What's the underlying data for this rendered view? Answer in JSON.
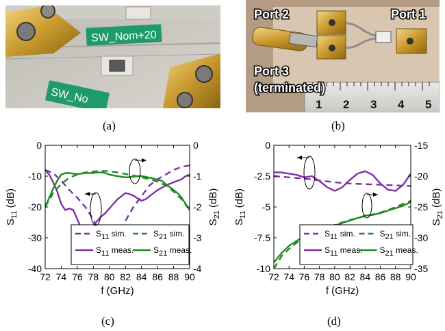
{
  "panel_a": {
    "caption": "(a)",
    "labels": [
      "SW_Nom+20",
      "SW_No"
    ]
  },
  "panel_b": {
    "caption": "(b)",
    "labels": [
      "Port 2",
      "Port 1",
      "Port 3",
      "(terminated)"
    ],
    "ruler_numbers": [
      "1",
      "2",
      "3",
      "4",
      "5"
    ]
  },
  "chart_data": [
    {
      "type": "line",
      "caption": "(c)",
      "xlabel": "f (GHz)",
      "ylabel_left": "S11 (dB)",
      "ylabel_right": "S21 (dB)",
      "xlim": [
        72,
        90
      ],
      "xticks": [
        "72",
        "74",
        "76",
        "78",
        "80",
        "82",
        "84",
        "86",
        "88",
        "90"
      ],
      "ylim_left": [
        -40,
        0
      ],
      "yticks_left": [
        "0",
        "-10",
        "-20",
        "-30",
        "-40"
      ],
      "ylim_right": [
        -4,
        0
      ],
      "yticks_right": [
        "0",
        "-1",
        "-2",
        "-3",
        "-4"
      ],
      "series": [
        {
          "name": "S11 sim.",
          "axis": "left",
          "style": "dashed",
          "color": "#7f2fa6",
          "x": [
            72,
            73,
            74,
            75,
            76,
            77,
            78,
            79,
            80,
            81,
            82,
            83,
            84,
            85,
            86,
            87,
            88,
            89,
            90
          ],
          "y": [
            -8,
            -9,
            -11.5,
            -14.5,
            -17,
            -20,
            -24,
            -30,
            -33,
            -30,
            -24.5,
            -20,
            -16.5,
            -13,
            -11,
            -9.5,
            -8,
            -7,
            -6.5
          ]
        },
        {
          "name": "S21 sim.",
          "axis": "right",
          "style": "dashed",
          "color": "#1f8a1f",
          "x": [
            72,
            73,
            74,
            75,
            76,
            77,
            78,
            79,
            80,
            81,
            82,
            83,
            84,
            85,
            86,
            87,
            88,
            89,
            90
          ],
          "y": [
            -2,
            -1.55,
            -1.25,
            -1.05,
            -0.95,
            -0.88,
            -0.85,
            -0.83,
            -0.84,
            -0.88,
            -0.93,
            -0.98,
            -1.04,
            -1.1,
            -1.18,
            -1.3,
            -1.5,
            -1.75,
            -2.1
          ]
        },
        {
          "name": "S11 meas.",
          "axis": "left",
          "style": "solid",
          "color": "#7f2fa6",
          "x": [
            72,
            72.5,
            73,
            73.5,
            74,
            74.5,
            75,
            75.5,
            76,
            76.5,
            77,
            77.5,
            78,
            78.5,
            79,
            79.5,
            80,
            80.5,
            81,
            81.5,
            82,
            82.5,
            83,
            83.5,
            84,
            84.5,
            85,
            85.5,
            86,
            86.5,
            87,
            87.5,
            88,
            88.5,
            89,
            89.5,
            90
          ],
          "y": [
            -8,
            -9.5,
            -12,
            -15,
            -19,
            -21,
            -20.5,
            -21,
            -24,
            -27,
            -28,
            -27.5,
            -26,
            -24.5,
            -23,
            -22,
            -20.5,
            -19,
            -17.5,
            -16.5,
            -15.5,
            -15.8,
            -16.3,
            -17.2,
            -18,
            -17.5,
            -16.5,
            -15.5,
            -14.5,
            -13.8,
            -13,
            -12.5,
            -12,
            -11.5,
            -11,
            -10,
            -9.5
          ]
        },
        {
          "name": "S21 meas.",
          "axis": "right",
          "style": "solid",
          "color": "#1f8a1f",
          "x": [
            72,
            72.5,
            73,
            73.5,
            74,
            74.5,
            75,
            75.5,
            76,
            76.5,
            77,
            77.5,
            78,
            78.5,
            79,
            79.5,
            80,
            80.5,
            81,
            81.5,
            82,
            82.5,
            83,
            83.5,
            84,
            84.5,
            85,
            85.5,
            86,
            86.5,
            87,
            87.5,
            88,
            88.5,
            89,
            89.5,
            90
          ],
          "y": [
            -2,
            -1.7,
            -1.4,
            -1.15,
            -0.95,
            -0.9,
            -0.9,
            -0.92,
            -0.93,
            -0.92,
            -0.9,
            -0.9,
            -0.9,
            -0.88,
            -0.88,
            -0.9,
            -0.95,
            -0.98,
            -1.0,
            -1.02,
            -1.04,
            -1.03,
            -1.02,
            -1.0,
            -1.0,
            -1.02,
            -1.05,
            -1.08,
            -1.12,
            -1.15,
            -1.25,
            -1.35,
            -1.45,
            -1.55,
            -1.7,
            -1.9,
            -2.1
          ]
        }
      ]
    },
    {
      "type": "line",
      "caption": "(d)",
      "xlabel": "f (GHz)",
      "ylabel_left": "S11 (dB)",
      "ylabel_right": "S21 (dB)",
      "xlim": [
        72,
        90
      ],
      "xticks": [
        "72",
        "74",
        "76",
        "78",
        "80",
        "82",
        "84",
        "86",
        "88",
        "90"
      ],
      "ylim_left": [
        -10,
        0
      ],
      "yticks_left": [
        "0",
        "-2.5",
        "-5",
        "-7.5",
        "-10"
      ],
      "ylim_right": [
        -35,
        -15
      ],
      "yticks_right": [
        "-15",
        "-20",
        "-25",
        "-30",
        "-35"
      ],
      "series": [
        {
          "name": "S11 sim.",
          "axis": "left",
          "style": "dashed",
          "color": "#7f2fa6",
          "x": [
            72,
            74,
            76,
            78,
            80,
            82,
            84,
            86,
            88,
            90
          ],
          "y": [
            -2.5,
            -2.6,
            -2.7,
            -2.85,
            -3.0,
            -3.1,
            -3.15,
            -3.2,
            -3.25,
            -3.3
          ]
        },
        {
          "name": "S21 sim.",
          "axis": "right",
          "style": "dashed",
          "color": "#1f8a1f",
          "x": [
            72,
            73,
            74,
            75,
            76,
            77,
            78,
            79,
            80,
            81,
            82,
            83,
            84,
            85,
            86,
            87,
            88,
            89,
            90
          ],
          "y": [
            -35,
            -33,
            -31.8,
            -30.8,
            -30,
            -29.3,
            -28.7,
            -28.3,
            -27.9,
            -27.5,
            -27.1,
            -26.8,
            -26.5,
            -26.2,
            -25.9,
            -25.5,
            -25,
            -24.5,
            -24
          ]
        },
        {
          "name": "S11 meas.",
          "axis": "left",
          "style": "solid",
          "color": "#7f2fa6",
          "x": [
            72,
            73,
            74,
            75,
            76,
            77,
            78,
            79,
            80,
            81,
            82,
            83,
            84,
            85,
            86,
            87,
            88,
            89,
            90
          ],
          "y": [
            -2.2,
            -2.2,
            -2.3,
            -2.4,
            -2.6,
            -2.5,
            -2.9,
            -3.4,
            -3.7,
            -3.4,
            -2.8,
            -2.3,
            -2.1,
            -2.4,
            -3.1,
            -3.6,
            -3.7,
            -3.2,
            -2.3
          ]
        },
        {
          "name": "S21 meas.",
          "axis": "right",
          "style": "solid",
          "color": "#1f8a1f",
          "x": [
            72,
            73,
            74,
            75,
            76,
            77,
            78,
            79,
            80,
            81,
            82,
            83,
            84,
            85,
            86,
            87,
            88,
            89,
            90
          ],
          "y": [
            -34,
            -32.5,
            -31.3,
            -30.5,
            -29.8,
            -29.2,
            -28.8,
            -28.3,
            -28.0,
            -27.6,
            -27.2,
            -26.8,
            -26.4,
            -26.3,
            -26.0,
            -25.6,
            -25.2,
            -24.8,
            -24.2
          ]
        }
      ]
    }
  ]
}
